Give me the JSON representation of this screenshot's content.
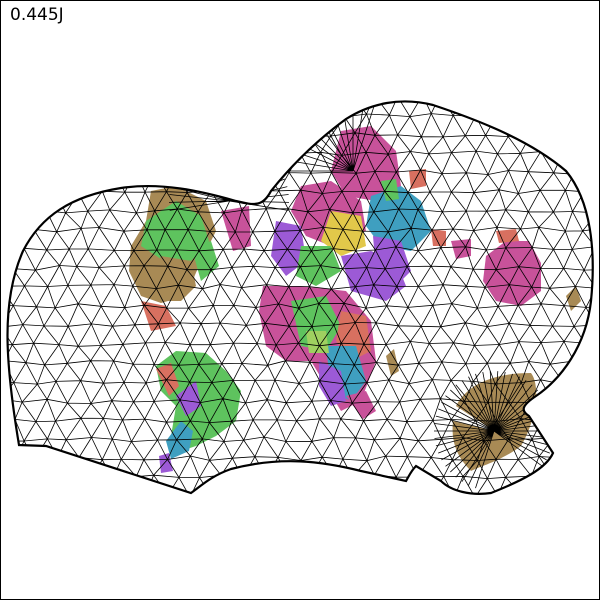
{
  "readout": "0.445J",
  "colors": {
    "mesh": "#000000",
    "olive": "#a88a55",
    "green": "#5ec35e",
    "pink": "#c8529a",
    "teal": "#3f9fc0",
    "purple": "#9c5ad6",
    "salmon": "#d87060",
    "lime": "#9fd060",
    "violet": "#7a3fa0"
  }
}
